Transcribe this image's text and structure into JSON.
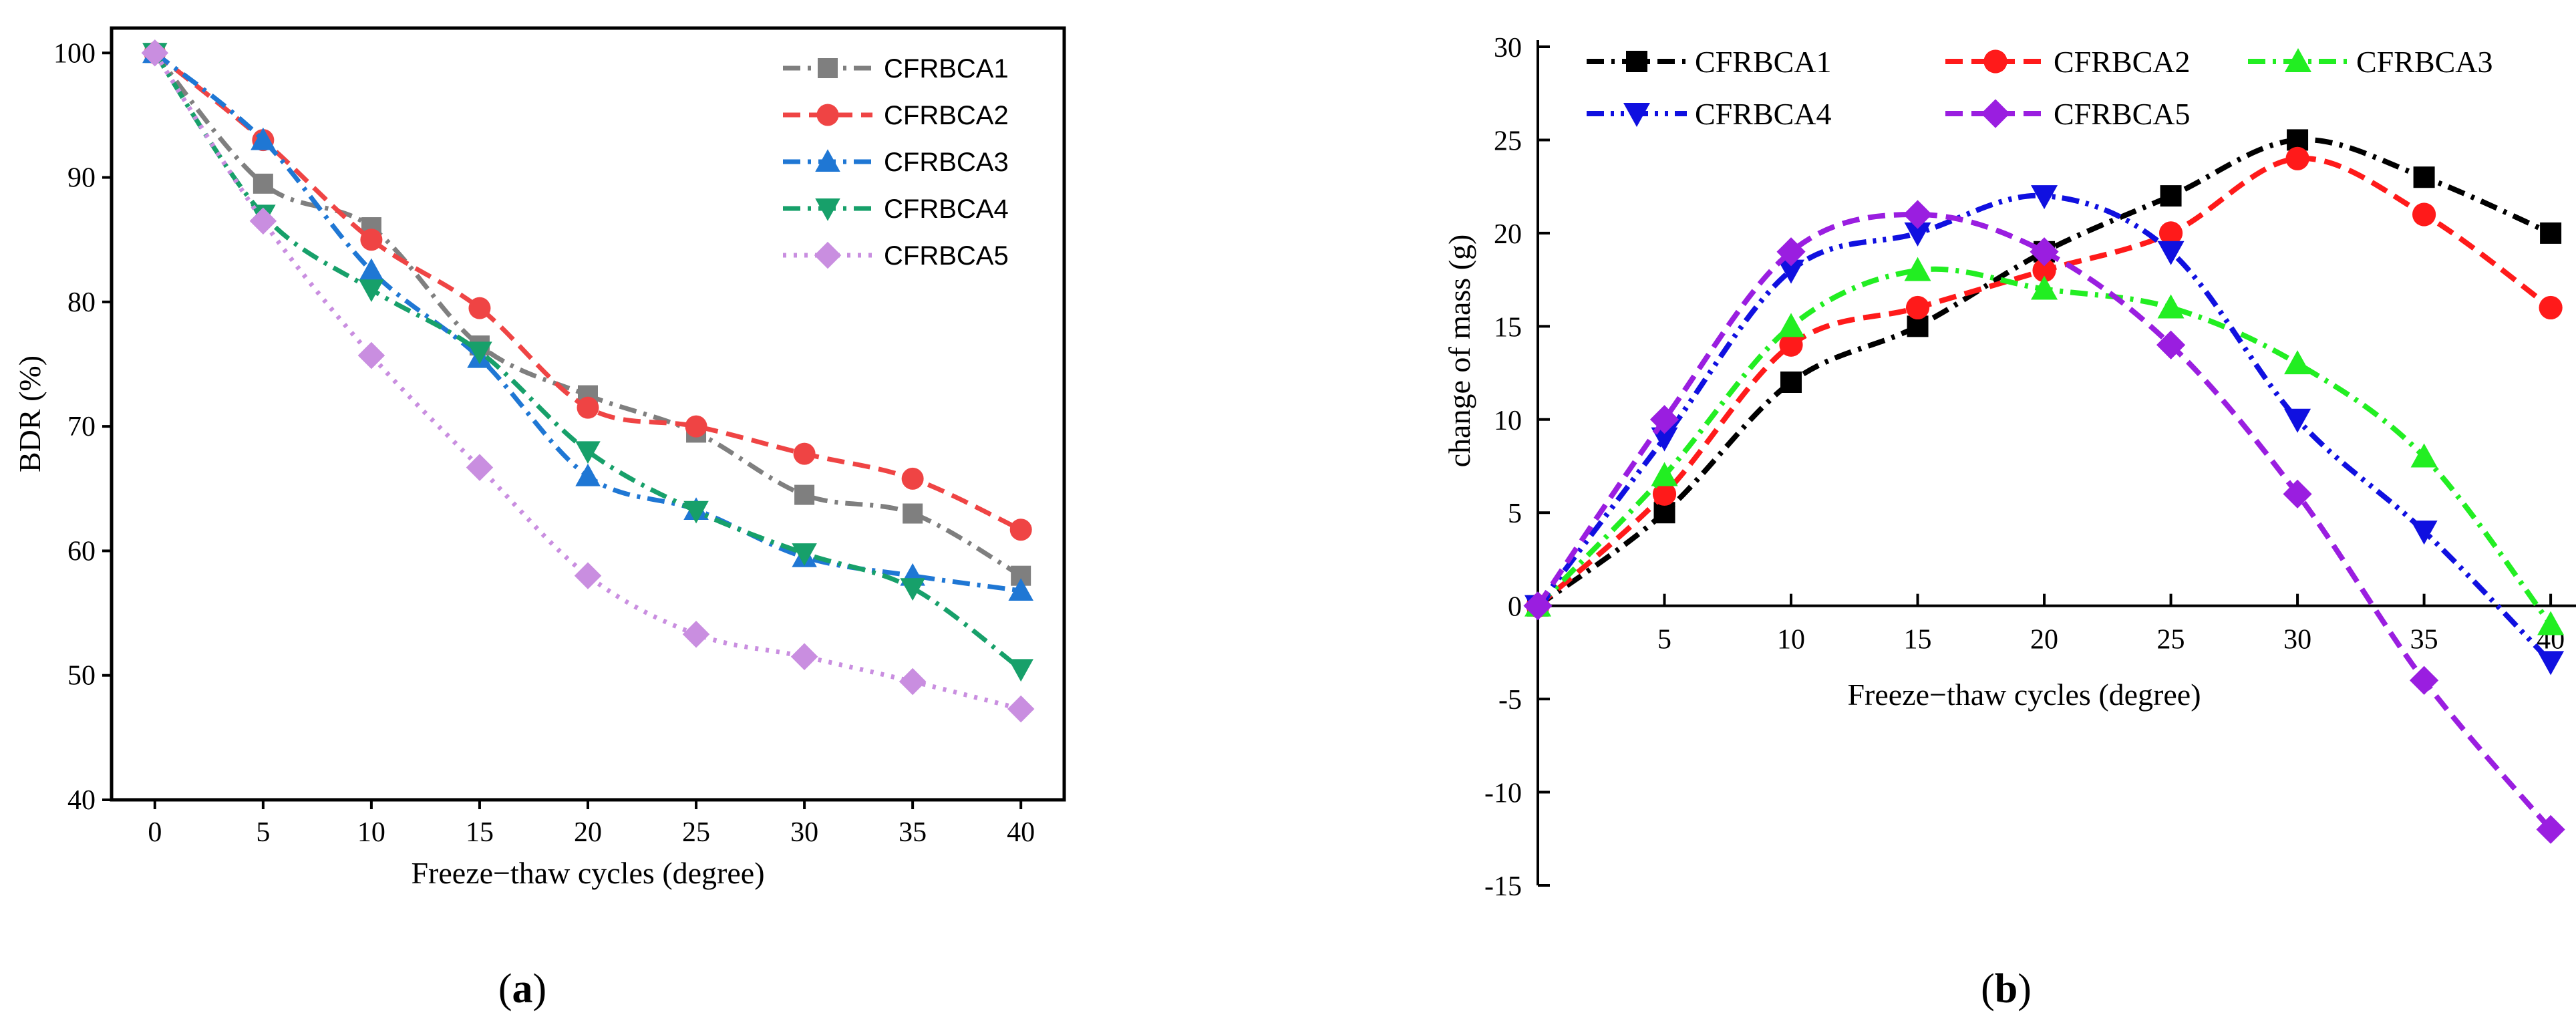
{
  "panels": {
    "a": {
      "label_open": "(",
      "label_letter": "a",
      "label_close": ")"
    },
    "b": {
      "label_open": "(",
      "label_letter": "b",
      "label_close": ")"
    }
  },
  "chart_data": [
    {
      "type": "line",
      "xlabel": "Freeze−thaw cycles (degree)",
      "ylabel": "BDR (%)",
      "x": [
        0,
        5,
        10,
        15,
        20,
        25,
        30,
        35,
        40
      ],
      "xlim": [
        -2,
        42
      ],
      "ylim": [
        40,
        102
      ],
      "xticks": [
        0,
        5,
        10,
        15,
        20,
        25,
        30,
        35,
        40
      ],
      "yticks": [
        40,
        50,
        60,
        70,
        80,
        90,
        100
      ],
      "legend_position": "top-right",
      "series": [
        {
          "name": "CFRBCA1",
          "color": "#7f7f7f",
          "marker": "square",
          "dash": "dashdot",
          "values": [
            100,
            89.5,
            86,
            76.5,
            72.5,
            69.5,
            64.5,
            63,
            58
          ]
        },
        {
          "name": "CFRBCA2",
          "color": "#ef4444",
          "marker": "circle",
          "dash": "dash",
          "values": [
            100,
            93,
            85,
            79.5,
            71.5,
            70,
            67.8,
            65.8,
            61.7
          ]
        },
        {
          "name": "CFRBCA3",
          "color": "#1f77d4",
          "marker": "triangle-up",
          "dash": "dashdot",
          "values": [
            100,
            93,
            82.5,
            75.5,
            66,
            63.3,
            59.5,
            58,
            56.8
          ]
        },
        {
          "name": "CFRBCA4",
          "color": "#17a06a",
          "marker": "triangle-down",
          "dash": "dashdot",
          "values": [
            100,
            87,
            81,
            76,
            68,
            63.2,
            59.8,
            57,
            50.5
          ]
        },
        {
          "name": "CFRBCA5",
          "color": "#c98ee0",
          "marker": "diamond",
          "dash": "dot",
          "values": [
            100,
            86.5,
            75.7,
            66.7,
            58,
            53.3,
            51.5,
            49.5,
            47.3
          ]
        }
      ]
    },
    {
      "type": "line",
      "xlabel": "Freeze−thaw cycles (degree)",
      "ylabel": "change of mass (g)",
      "x": [
        0,
        5,
        10,
        15,
        20,
        25,
        30,
        35,
        40
      ],
      "xlim": [
        0,
        41
      ],
      "ylim": [
        -15,
        30
      ],
      "xticks": [
        5,
        10,
        15,
        20,
        25,
        30,
        35,
        40
      ],
      "yticks": [
        -15,
        -10,
        -5,
        0,
        5,
        10,
        15,
        20,
        25,
        30
      ],
      "legend_position": "top",
      "series": [
        {
          "name": "CFRBCA1",
          "color": "#000000",
          "marker": "square",
          "dash": "dashdot",
          "values": [
            0,
            5,
            12,
            15,
            19,
            22,
            25,
            23,
            20
          ]
        },
        {
          "name": "CFRBCA2",
          "color": "#ff1a1a",
          "marker": "circle",
          "dash": "dash",
          "values": [
            0,
            6,
            14,
            16,
            18,
            20,
            24,
            21,
            16
          ]
        },
        {
          "name": "CFRBCA3",
          "color": "#22ee22",
          "marker": "triangle-up",
          "dash": "dashdot",
          "values": [
            0,
            7,
            15,
            18,
            17,
            16,
            13,
            8,
            -1
          ]
        },
        {
          "name": "CFRBCA4",
          "color": "#1010e0",
          "marker": "triangle-down",
          "dash": "dashdotdot",
          "values": [
            0,
            9,
            18,
            20,
            22,
            19,
            10,
            4,
            -3
          ]
        },
        {
          "name": "CFRBCA5",
          "color": "#9a1ee0",
          "marker": "diamond",
          "dash": "dash",
          "values": [
            0,
            10,
            19,
            21,
            19,
            14,
            6,
            -4,
            -12
          ]
        }
      ]
    }
  ]
}
